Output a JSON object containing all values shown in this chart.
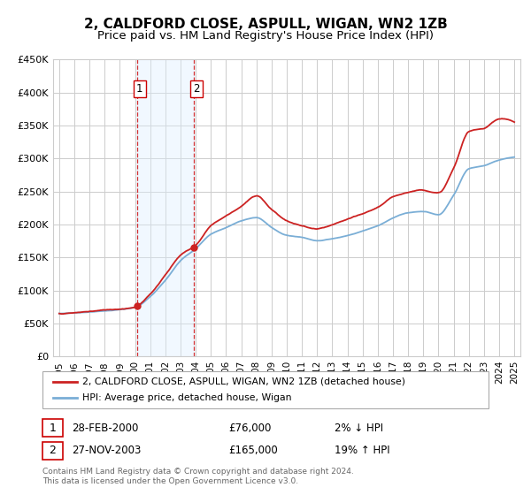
{
  "title": "2, CALDFORD CLOSE, ASPULL, WIGAN, WN2 1ZB",
  "subtitle": "Price paid vs. HM Land Registry's House Price Index (HPI)",
  "ylim": [
    0,
    450000
  ],
  "yticks": [
    0,
    50000,
    100000,
    150000,
    200000,
    250000,
    300000,
    350000,
    400000,
    450000
  ],
  "ytick_labels": [
    "£0",
    "£50K",
    "£100K",
    "£150K",
    "£200K",
    "£250K",
    "£300K",
    "£350K",
    "£400K",
    "£450K"
  ],
  "background_color": "#ffffff",
  "plot_background": "#ffffff",
  "grid_color": "#cccccc",
  "sale1_date_num": 2000.16,
  "sale1_price": 76000,
  "sale1_label": "1",
  "sale2_date_num": 2003.9,
  "sale2_price": 165000,
  "sale2_label": "2",
  "shade_color": "#ddeeff",
  "dashed_color": "#cc0000",
  "legend_line1": "2, CALDFORD CLOSE, ASPULL, WIGAN, WN2 1ZB (detached house)",
  "legend_line2": "HPI: Average price, detached house, Wigan",
  "table_row1": [
    "1",
    "28-FEB-2000",
    "£76,000",
    "2% ↓ HPI"
  ],
  "table_row2": [
    "2",
    "27-NOV-2003",
    "£165,000",
    "19% ↑ HPI"
  ],
  "footnote": "Contains HM Land Registry data © Crown copyright and database right 2024.\nThis data is licensed under the Open Government Licence v3.0.",
  "hpi_color": "#7aaed6",
  "sale_color": "#cc2222",
  "title_fontsize": 11,
  "subtitle_fontsize": 9.5
}
